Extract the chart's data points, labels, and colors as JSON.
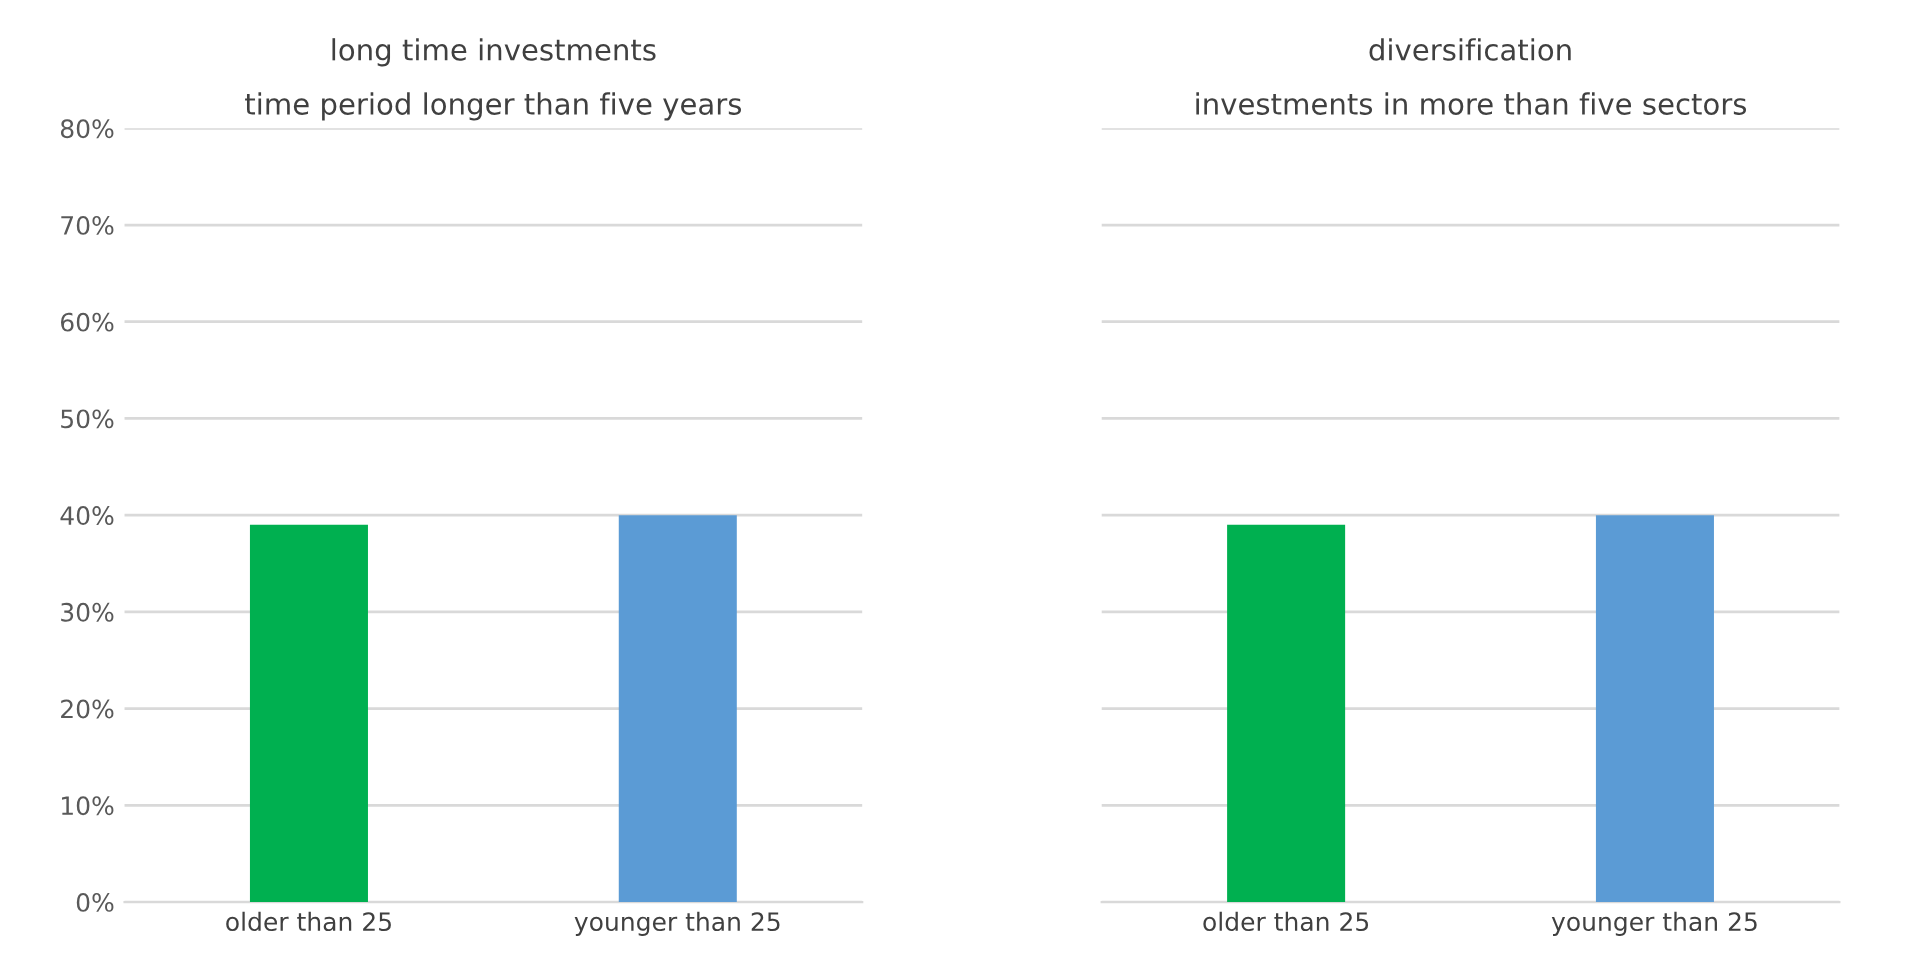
{
  "chart_data": [
    {
      "type": "bar",
      "title": "long time investments",
      "subtitle": "time period longer than five years",
      "categories": [
        "older than 25",
        "younger than 25"
      ],
      "values": [
        39,
        40
      ],
      "colors": [
        "#00b050",
        "#5b9bd5"
      ],
      "ylim": [
        0,
        80
      ],
      "yticks": [
        {
          "value": 0,
          "label": "0%"
        },
        {
          "value": 10,
          "label": "10%"
        },
        {
          "value": 20,
          "label": "20%"
        },
        {
          "value": 30,
          "label": "30%"
        },
        {
          "value": 40,
          "label": "40%"
        },
        {
          "value": 50,
          "label": "50%"
        },
        {
          "value": 60,
          "label": "60%"
        },
        {
          "value": 70,
          "label": "70%"
        },
        {
          "value": 80,
          "label": "80%"
        }
      ],
      "grid": "y"
    },
    {
      "type": "bar",
      "title": "diversification",
      "subtitle": "investments in more than five sectors",
      "categories": [
        "older than 25",
        "younger than 25"
      ],
      "values": [
        39,
        40
      ],
      "colors": [
        "#00b050",
        "#5b9bd5"
      ],
      "ylim": [
        0,
        80
      ],
      "yticks": [
        {
          "value": 0,
          "label": null
        },
        {
          "value": 10,
          "label": null
        },
        {
          "value": 20,
          "label": null
        },
        {
          "value": 30,
          "label": null
        },
        {
          "value": 40,
          "label": null
        },
        {
          "value": 50,
          "label": null
        },
        {
          "value": 60,
          "label": null
        },
        {
          "value": 70,
          "label": null
        },
        {
          "value": 80,
          "label": null
        }
      ],
      "grid": "y",
      "tick_labels": "x"
    }
  ]
}
